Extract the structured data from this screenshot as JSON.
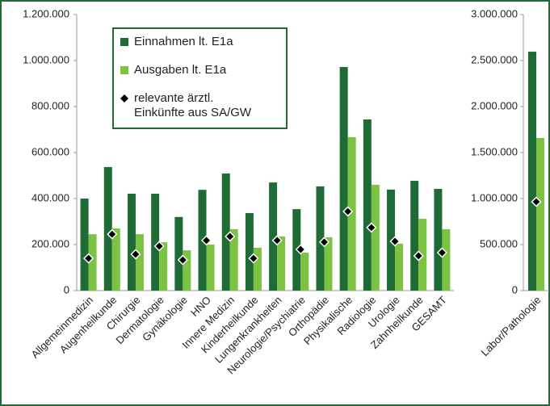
{
  "chart_data": [
    {
      "type": "bar",
      "categories": [
        "Allgemeinmedizin",
        "Augenheilkunde",
        "Chirurgie",
        "Dermatologie",
        "Gynäkologie",
        "HNO",
        "Innere Medizin",
        "Kinderheilkunde",
        "Lungenkrankheiten",
        "Neurologie/Psychiatrie",
        "Orthopädie",
        "Physikalische",
        "Radiologie",
        "Urologie",
        "Zahnheilkunde",
        "GESAMT"
      ],
      "series": [
        {
          "name": "Einnahmen lt. E1a",
          "color": "#1e6b35",
          "values": [
            400000,
            537000,
            421000,
            421000,
            320000,
            438000,
            509000,
            337000,
            470000,
            354000,
            453000,
            972000,
            744000,
            439000,
            477000,
            442000
          ]
        },
        {
          "name": "Ausgaben lt. E1a",
          "color": "#7cc243",
          "values": [
            245000,
            270000,
            245000,
            210000,
            175000,
            200000,
            267000,
            186000,
            235000,
            165000,
            232000,
            667000,
            460000,
            204000,
            312000,
            267000
          ]
        },
        {
          "name": "relevante ärztl.\nEinkünfte aus SA/GW",
          "color": "#000000",
          "marker": "diamond",
          "values": [
            140000,
            245000,
            158000,
            193000,
            133000,
            218000,
            235000,
            140000,
            218000,
            179000,
            211000,
            344000,
            274000,
            214000,
            151000,
            165000
          ]
        }
      ],
      "ylim": [
        0,
        1200000
      ],
      "yticks": [
        0,
        {
          "value": 200000,
          "label": "200.000"
        },
        {
          "value": 400000,
          "label": "400.000"
        },
        {
          "value": 600000,
          "label": "600.000"
        },
        {
          "value": 800000,
          "label": "800.000"
        },
        {
          "value": 1000000,
          "label": "1.000.000"
        },
        {
          "value": 1200000,
          "label": "1.200.000"
        }
      ]
    },
    {
      "type": "bar",
      "categories": [
        "Labor/Pathologie"
      ],
      "series": [
        {
          "color": "#1e6b35",
          "values": [
            2596000
          ]
        },
        {
          "color": "#7cc243",
          "values": [
            1658000
          ]
        },
        {
          "color": "#000000",
          "marker": "diamond",
          "values": [
            965000
          ]
        }
      ],
      "ylim": [
        0,
        3000000
      ],
      "yticks": [
        0,
        {
          "value": 500000,
          "label": "500.000"
        },
        {
          "value": 1000000,
          "label": "1.000.000"
        },
        {
          "value": 1500000,
          "label": "1.500.000"
        },
        {
          "value": 2000000,
          "label": "2.000.000"
        },
        {
          "value": 2500000,
          "label": "2.500.000"
        },
        {
          "value": 3000000,
          "label": "3.000.000"
        }
      ]
    }
  ]
}
